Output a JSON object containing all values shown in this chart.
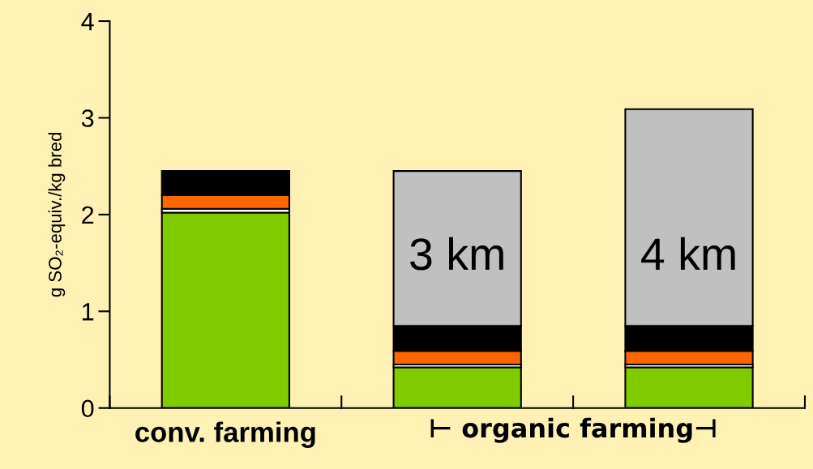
{
  "chart_data": {
    "type": "bar",
    "stacked": true,
    "ylabel": "g SO₂-equiv./kg bred",
    "categories": [
      "conv. farming",
      null,
      null
    ],
    "series": [
      {
        "color": "#80cc00",
        "values": [
          2.02,
          0.42,
          0.42
        ]
      },
      {
        "color": "#ffffff",
        "values": [
          0.04,
          0.03,
          0.03
        ]
      },
      {
        "color": "#ff6600",
        "values": [
          0.14,
          0.14,
          0.14
        ]
      },
      {
        "color": "#000000",
        "values": [
          0.25,
          0.26,
          0.26
        ]
      },
      {
        "color": "#c0c0c0",
        "values": [
          null,
          1.6,
          2.24
        ]
      }
    ],
    "ylim": [
      0,
      4
    ],
    "yticks": [
      0,
      1,
      2,
      3,
      4
    ],
    "grid": false,
    "legend": false,
    "annotations": [
      "⊢ organic farming⊣",
      "3 km",
      "4 km"
    ]
  }
}
